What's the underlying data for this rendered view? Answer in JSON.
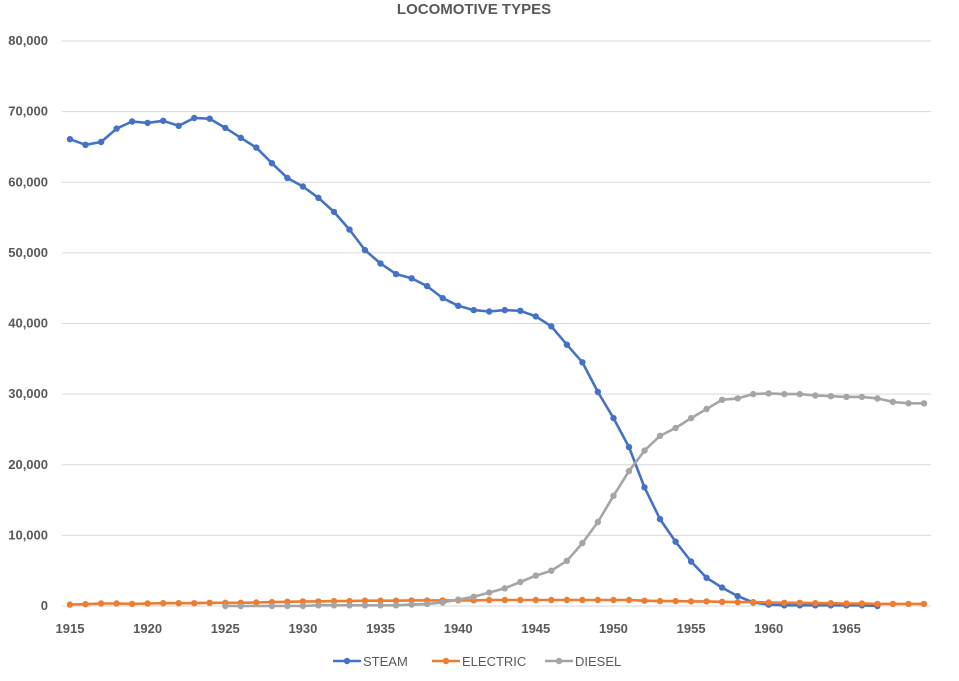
{
  "chart_data": {
    "type": "line",
    "title": "LOCOMOTIVE TYPES",
    "xlabel": "",
    "ylabel": "",
    "xlim": [
      1915,
      1970
    ],
    "ylim": [
      0,
      80000
    ],
    "grid": true,
    "legend": "bottom",
    "y_ticks": [
      "0",
      "10,000",
      "20,000",
      "30,000",
      "40,000",
      "50,000",
      "60,000",
      "70,000",
      "80,000"
    ],
    "x_ticks": [
      "1915",
      "1920",
      "1925",
      "1930",
      "1935",
      "1940",
      "1945",
      "1950",
      "1955",
      "1960",
      "1965"
    ],
    "series": [
      {
        "name": "STEAM",
        "color": "#4472C4",
        "x": [
          1915,
          1916,
          1917,
          1918,
          1919,
          1920,
          1921,
          1922,
          1923,
          1924,
          1925,
          1926,
          1927,
          1928,
          1929,
          1930,
          1931,
          1932,
          1933,
          1934,
          1935,
          1936,
          1937,
          1938,
          1939,
          1940,
          1941,
          1942,
          1943,
          1944,
          1945,
          1946,
          1947,
          1948,
          1949,
          1950,
          1951,
          1952,
          1953,
          1954,
          1955,
          1956,
          1957,
          1958,
          1959,
          1960,
          1961,
          1962,
          1963,
          1964,
          1965,
          1966,
          1967
        ],
        "y": [
          66100,
          65300,
          65700,
          67600,
          68600,
          68400,
          68700,
          68000,
          69100,
          69000,
          67700,
          66300,
          64900,
          62700,
          60600,
          59400,
          57800,
          55800,
          53300,
          50400,
          48500,
          47000,
          46400,
          45300,
          43600,
          42500,
          41900,
          41700,
          41900,
          41800,
          41000,
          39600,
          37000,
          34500,
          30300,
          26600,
          22500,
          16800,
          12300,
          9100,
          6300,
          4000,
          2600,
          1400,
          500,
          200,
          100,
          100,
          100,
          100,
          100,
          100,
          0
        ]
      },
      {
        "name": "ELECTRIC",
        "color": "#ED7D31",
        "x": [
          1915,
          1916,
          1917,
          1918,
          1919,
          1920,
          1921,
          1922,
          1923,
          1924,
          1925,
          1926,
          1927,
          1928,
          1929,
          1930,
          1931,
          1932,
          1933,
          1934,
          1935,
          1936,
          1937,
          1938,
          1939,
          1940,
          1941,
          1942,
          1943,
          1944,
          1945,
          1946,
          1947,
          1948,
          1949,
          1950,
          1951,
          1952,
          1953,
          1954,
          1955,
          1956,
          1957,
          1958,
          1959,
          1960,
          1961,
          1962,
          1963,
          1964,
          1965,
          1966,
          1967,
          1968,
          1969,
          1970
        ],
        "y": [
          200,
          250,
          350,
          350,
          300,
          350,
          400,
          400,
          400,
          450,
          450,
          450,
          500,
          550,
          600,
          650,
          650,
          700,
          700,
          750,
          750,
          750,
          800,
          800,
          800,
          800,
          800,
          850,
          850,
          850,
          850,
          850,
          850,
          850,
          850,
          850,
          850,
          750,
          700,
          700,
          650,
          650,
          600,
          550,
          550,
          500,
          450,
          450,
          400,
          400,
          350,
          350,
          300,
          300,
          300,
          300
        ]
      },
      {
        "name": "DIESEL",
        "color": "#A5A5A5",
        "x": [
          1925,
          1926,
          1928,
          1929,
          1930,
          1931,
          1932,
          1933,
          1934,
          1935,
          1936,
          1937,
          1938,
          1939,
          1940,
          1941,
          1942,
          1943,
          1944,
          1945,
          1946,
          1947,
          1948,
          1949,
          1950,
          1951,
          1952,
          1953,
          1954,
          1955,
          1956,
          1957,
          1958,
          1959,
          1960,
          1961,
          1962,
          1963,
          1964,
          1965,
          1966,
          1967,
          1968,
          1969,
          1970
        ],
        "y": [
          0,
          0,
          0,
          0,
          0,
          100,
          100,
          100,
          100,
          100,
          100,
          200,
          300,
          500,
          900,
          1300,
          1900,
          2500,
          3400,
          4300,
          5000,
          6400,
          8900,
          11900,
          15600,
          19100,
          22000,
          24100,
          25200,
          26600,
          27900,
          29200,
          29400,
          30000,
          30100,
          30000,
          30000,
          29800,
          29700,
          29600,
          29600,
          29400,
          28900,
          28700,
          28700
        ]
      }
    ]
  }
}
